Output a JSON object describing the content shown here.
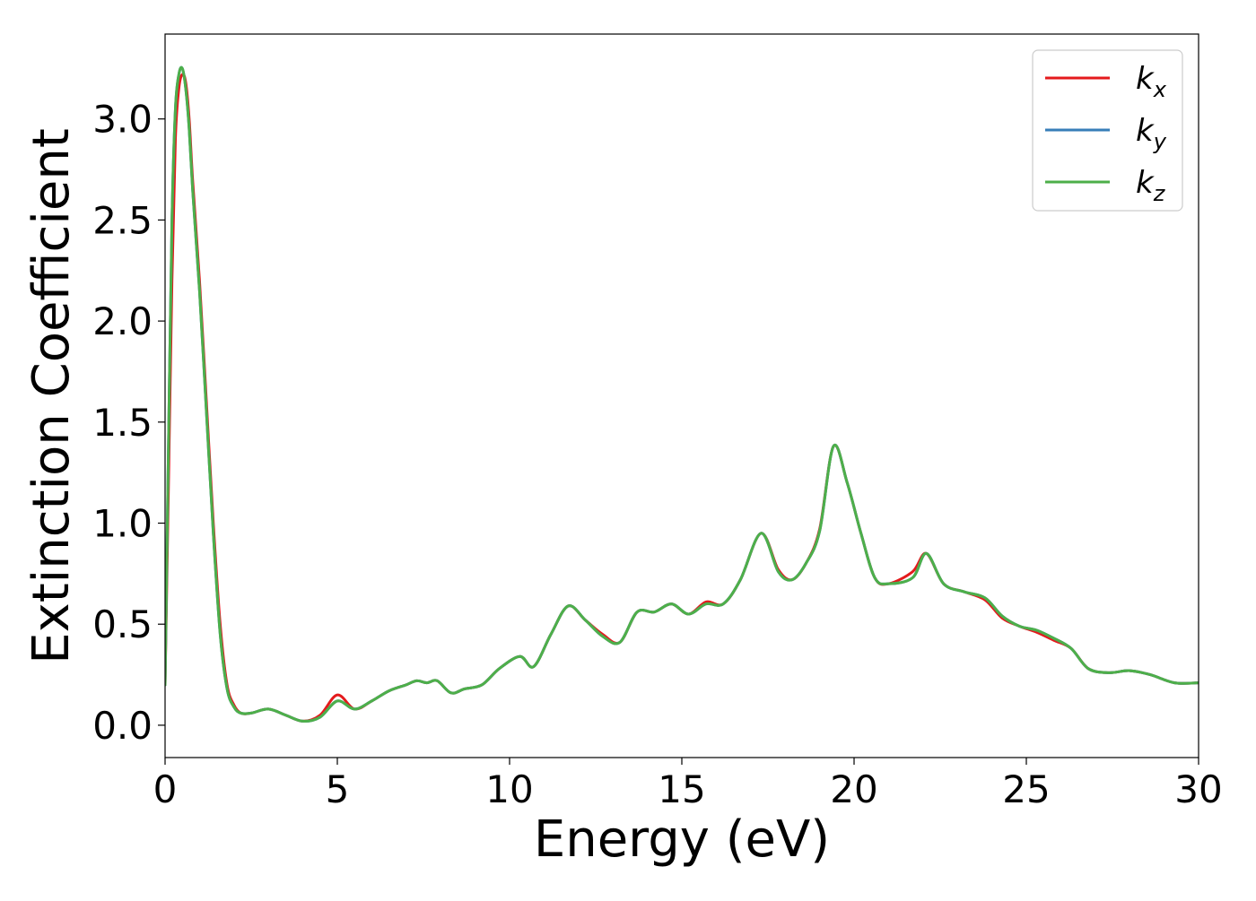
{
  "chart_data": {
    "type": "line",
    "title": "",
    "xlabel": "Energy (eV)",
    "ylabel": "Extinction Coefficient",
    "xlim": [
      0,
      30
    ],
    "ylim": [
      -0.16,
      3.42
    ],
    "xticks": [
      0,
      5,
      10,
      15,
      20,
      25,
      30
    ],
    "xtick_labels": [
      "0",
      "5",
      "10",
      "15",
      "20",
      "25",
      "30"
    ],
    "yticks": [
      0.0,
      0.5,
      1.0,
      1.5,
      2.0,
      2.5,
      3.0
    ],
    "ytick_labels": [
      "0.0",
      "0.5",
      "1.0",
      "1.5",
      "2.0",
      "2.5",
      "3.0"
    ],
    "grid": false,
    "legend_position": "top-right",
    "series": [
      {
        "name": "k_x",
        "label_main": "k",
        "label_sub": "x",
        "color": "#e41a1c",
        "x": [
          0,
          0.1,
          0.2,
          0.3,
          0.4,
          0.5,
          0.6,
          0.7,
          0.8,
          1.0,
          1.2,
          1.4,
          1.6,
          1.8,
          2.0,
          2.2,
          2.5,
          3.0,
          3.5,
          4.0,
          4.5,
          5.0,
          5.5,
          6.0,
          6.5,
          7.0,
          7.3,
          7.6,
          7.9,
          8.3,
          8.7,
          9.2,
          9.7,
          10.3,
          10.7,
          11.2,
          11.7,
          12.2,
          12.7,
          13.2,
          13.7,
          14.2,
          14.7,
          15.2,
          15.7,
          16.2,
          16.7,
          17.3,
          17.8,
          18.2,
          18.6,
          19.0,
          19.4,
          19.8,
          20.2,
          20.6,
          21.0,
          21.7,
          22.1,
          22.6,
          23.2,
          23.8,
          24.3,
          24.8,
          25.3,
          25.8,
          26.3,
          26.8,
          27.4,
          28.0,
          28.6,
          29.3,
          30.0
        ],
        "y": [
          0.2,
          1.2,
          2.2,
          2.9,
          3.15,
          3.22,
          3.18,
          3.0,
          2.7,
          2.2,
          1.6,
          1.0,
          0.5,
          0.2,
          0.1,
          0.06,
          0.06,
          0.08,
          0.05,
          0.02,
          0.05,
          0.15,
          0.08,
          0.12,
          0.17,
          0.2,
          0.22,
          0.21,
          0.22,
          0.16,
          0.18,
          0.2,
          0.28,
          0.34,
          0.29,
          0.45,
          0.59,
          0.52,
          0.45,
          0.41,
          0.56,
          0.56,
          0.6,
          0.55,
          0.61,
          0.6,
          0.72,
          0.95,
          0.77,
          0.72,
          0.8,
          0.97,
          1.38,
          1.2,
          0.95,
          0.73,
          0.7,
          0.76,
          0.85,
          0.7,
          0.66,
          0.62,
          0.53,
          0.49,
          0.46,
          0.42,
          0.38,
          0.28,
          0.26,
          0.27,
          0.25,
          0.21,
          0.21
        ]
      },
      {
        "name": "k_y",
        "label_main": "k",
        "label_sub": "y",
        "color": "#377eb8",
        "x": [
          0,
          0.1,
          0.2,
          0.3,
          0.4,
          0.5,
          0.6,
          0.7,
          0.8,
          1.0,
          1.2,
          1.4,
          1.6,
          1.8,
          2.0,
          2.2,
          2.5,
          3.0,
          3.5,
          4.0,
          4.5,
          5.0,
          5.5,
          6.0,
          6.5,
          7.0,
          7.3,
          7.6,
          7.9,
          8.3,
          8.7,
          9.2,
          9.7,
          10.3,
          10.7,
          11.2,
          11.7,
          12.2,
          12.7,
          13.2,
          13.7,
          14.2,
          14.7,
          15.2,
          15.7,
          16.2,
          16.7,
          17.3,
          17.8,
          18.2,
          18.6,
          19.0,
          19.4,
          19.8,
          20.2,
          20.6,
          21.0,
          21.7,
          22.1,
          22.6,
          23.2,
          23.8,
          24.3,
          24.8,
          25.3,
          25.8,
          26.3,
          26.8,
          27.4,
          28.0,
          28.6,
          29.3,
          30.0
        ],
        "y": [
          0.2,
          1.4,
          2.5,
          3.05,
          3.22,
          3.25,
          3.15,
          2.95,
          2.65,
          2.15,
          1.55,
          0.95,
          0.45,
          0.18,
          0.09,
          0.06,
          0.06,
          0.08,
          0.05,
          0.02,
          0.04,
          0.12,
          0.08,
          0.12,
          0.17,
          0.2,
          0.22,
          0.21,
          0.22,
          0.16,
          0.18,
          0.2,
          0.28,
          0.34,
          0.29,
          0.45,
          0.59,
          0.52,
          0.44,
          0.41,
          0.56,
          0.56,
          0.6,
          0.55,
          0.6,
          0.6,
          0.72,
          0.95,
          0.76,
          0.72,
          0.8,
          0.96,
          1.38,
          1.2,
          0.95,
          0.73,
          0.7,
          0.73,
          0.85,
          0.7,
          0.66,
          0.63,
          0.54,
          0.49,
          0.47,
          0.43,
          0.38,
          0.28,
          0.26,
          0.27,
          0.25,
          0.21,
          0.21
        ]
      },
      {
        "name": "k_z",
        "label_main": "k",
        "label_sub": "z",
        "color": "#4daf4a",
        "x": [
          0,
          0.1,
          0.2,
          0.3,
          0.4,
          0.5,
          0.6,
          0.7,
          0.8,
          1.0,
          1.2,
          1.4,
          1.6,
          1.8,
          2.0,
          2.2,
          2.5,
          3.0,
          3.5,
          4.0,
          4.5,
          5.0,
          5.5,
          6.0,
          6.5,
          7.0,
          7.3,
          7.6,
          7.9,
          8.3,
          8.7,
          9.2,
          9.7,
          10.3,
          10.7,
          11.2,
          11.7,
          12.2,
          12.7,
          13.2,
          13.7,
          14.2,
          14.7,
          15.2,
          15.7,
          16.2,
          16.7,
          17.3,
          17.8,
          18.2,
          18.6,
          19.0,
          19.4,
          19.8,
          20.2,
          20.6,
          21.0,
          21.7,
          22.1,
          22.6,
          23.2,
          23.8,
          24.3,
          24.8,
          25.3,
          25.8,
          26.3,
          26.8,
          27.4,
          28.0,
          28.6,
          29.3,
          30.0
        ],
        "y": [
          0.2,
          1.4,
          2.5,
          3.05,
          3.22,
          3.25,
          3.15,
          2.95,
          2.65,
          2.15,
          1.55,
          0.95,
          0.45,
          0.18,
          0.09,
          0.06,
          0.06,
          0.08,
          0.05,
          0.02,
          0.04,
          0.12,
          0.08,
          0.12,
          0.17,
          0.2,
          0.22,
          0.21,
          0.22,
          0.16,
          0.18,
          0.2,
          0.28,
          0.34,
          0.29,
          0.45,
          0.59,
          0.52,
          0.44,
          0.41,
          0.56,
          0.56,
          0.6,
          0.55,
          0.6,
          0.6,
          0.72,
          0.95,
          0.76,
          0.72,
          0.8,
          0.96,
          1.38,
          1.2,
          0.95,
          0.73,
          0.7,
          0.73,
          0.85,
          0.7,
          0.66,
          0.63,
          0.54,
          0.49,
          0.47,
          0.43,
          0.38,
          0.28,
          0.26,
          0.27,
          0.25,
          0.21,
          0.21
        ]
      }
    ]
  }
}
